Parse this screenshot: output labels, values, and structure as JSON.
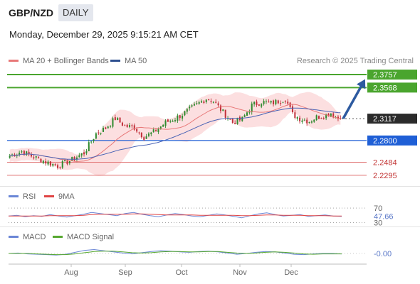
{
  "header": {
    "symbol": "GBP/NZD",
    "timeframe": "DAILY",
    "datetime": "Monday, December 29, 2025 9:15:21 AM CET",
    "credit": "Research © 2025 Trading Central"
  },
  "legend": {
    "ma20": "MA 20 + Bollinger Bands",
    "ma50": "MA 50",
    "rsi": "RSI",
    "ma9": "9MA",
    "macd": "MACD",
    "macd_signal": "MACD Signal"
  },
  "colors": {
    "bull": "#2f8a2f",
    "bear": "#c0303a",
    "ma20": "#e87878",
    "ma50": "#4a63b5",
    "band_fill": "#fbd9da",
    "resistance": "#4aa52e",
    "support": "#1f5fd6",
    "target": "#e07070",
    "arrow": "#2d5aa0",
    "current": "#2b2b2b",
    "rsi": "#6a86d6",
    "rsi_ma": "#e04444",
    "macd": "#6a86d6",
    "macd_signal": "#57a830"
  },
  "chart_data": [
    {
      "type": "candlestick",
      "title": "GBP/NZD DAILY",
      "y_range": [
        2.218,
        2.385
      ],
      "x_labels": [
        "Aug",
        "Sep",
        "Oct",
        "Nov",
        "Dec"
      ],
      "levels": [
        {
          "name": "resistance-2",
          "value": 2.3757,
          "label": "2.3757",
          "kind": "resistance"
        },
        {
          "name": "resistance-1",
          "value": 2.3568,
          "label": "2.3568",
          "kind": "resistance"
        },
        {
          "name": "current-price",
          "value": 2.3117,
          "label": "2.3117",
          "kind": "current"
        },
        {
          "name": "pivot",
          "value": 2.28,
          "label": "2.2800",
          "kind": "support"
        },
        {
          "name": "support-1",
          "value": 2.2484,
          "label": "2.2484",
          "kind": "target"
        },
        {
          "name": "support-2",
          "value": 2.2295,
          "label": "2.2295",
          "kind": "target"
        }
      ],
      "anchors": [
        {
          "i": 0,
          "c": 2.258
        },
        {
          "i": 5,
          "c": 2.264
        },
        {
          "i": 10,
          "c": 2.256
        },
        {
          "i": 15,
          "c": 2.249
        },
        {
          "i": 20,
          "c": 2.243
        },
        {
          "i": 26,
          "c": 2.252
        },
        {
          "i": 31,
          "c": 2.262
        },
        {
          "i": 36,
          "c": 2.29
        },
        {
          "i": 40,
          "c": 2.298
        },
        {
          "i": 44,
          "c": 2.312
        },
        {
          "i": 48,
          "c": 2.301
        },
        {
          "i": 52,
          "c": 2.299
        },
        {
          "i": 56,
          "c": 2.285
        },
        {
          "i": 60,
          "c": 2.292
        },
        {
          "i": 65,
          "c": 2.306
        },
        {
          "i": 69,
          "c": 2.312
        },
        {
          "i": 73,
          "c": 2.32
        },
        {
          "i": 78,
          "c": 2.332
        },
        {
          "i": 82,
          "c": 2.341
        },
        {
          "i": 85,
          "c": 2.337
        },
        {
          "i": 89,
          "c": 2.321
        },
        {
          "i": 93,
          "c": 2.306
        },
        {
          "i": 97,
          "c": 2.311
        },
        {
          "i": 101,
          "c": 2.331
        },
        {
          "i": 105,
          "c": 2.336
        },
        {
          "i": 109,
          "c": 2.334
        },
        {
          "i": 112,
          "c": 2.337
        },
        {
          "i": 115,
          "c": 2.341
        },
        {
          "i": 118,
          "c": 2.318
        },
        {
          "i": 121,
          "c": 2.312
        },
        {
          "i": 125,
          "c": 2.308
        },
        {
          "i": 128,
          "c": 2.314
        },
        {
          "i": 131,
          "c": 2.316
        },
        {
          "i": 134,
          "c": 2.32
        },
        {
          "i": 136,
          "c": 2.314
        },
        {
          "i": 138,
          "c": 2.31
        }
      ],
      "bars": 139
    },
    {
      "type": "line",
      "title": "RSI",
      "ticks": [
        {
          "value": 70,
          "label": "70"
        },
        {
          "value": 30,
          "label": "30"
        }
      ],
      "current": "47.66",
      "y_range": [
        25,
        78
      ],
      "series": [
        {
          "name": "RSI",
          "values": [
            48,
            50,
            46,
            49,
            47,
            52,
            48,
            45,
            49,
            53,
            58,
            55,
            52,
            49,
            55,
            58,
            53,
            49,
            46,
            51,
            55,
            52,
            48,
            46,
            50,
            54,
            51,
            47,
            43,
            49,
            54,
            57,
            52,
            48,
            50,
            52,
            47,
            49,
            51,
            48,
            47
          ]
        },
        {
          "name": "9MA",
          "values": [
            48,
            48,
            48,
            48,
            48,
            49,
            49,
            49,
            49,
            50,
            52,
            53,
            53,
            53,
            53,
            54,
            54,
            53,
            52,
            51,
            51,
            51,
            51,
            50,
            50,
            50,
            50,
            50,
            49,
            49,
            50,
            51,
            51,
            50,
            50,
            50,
            49,
            49,
            49,
            48,
            48
          ]
        }
      ]
    },
    {
      "type": "line",
      "title": "MACD",
      "current": "-0.00",
      "y_range": [
        -0.02,
        0.02
      ],
      "series": [
        {
          "name": "MACD",
          "values": [
            0.0,
            0.001,
            -0.001,
            -0.002,
            -0.003,
            -0.004,
            -0.002,
            0.003,
            0.008,
            0.01,
            0.007,
            0.004,
            0.001,
            -0.001,
            0.002,
            0.005,
            0.007,
            0.006,
            0.004,
            0.003,
            0.005,
            0.006,
            0.004,
            0.001,
            -0.002,
            0.0,
            0.003,
            0.005,
            0.004,
            0.001,
            -0.002,
            -0.003,
            -0.001,
            0.0,
            0.0,
            -0.001
          ]
        },
        {
          "name": "MACD Signal",
          "values": [
            0.0,
            0.0,
            0.0,
            -0.001,
            -0.002,
            -0.003,
            -0.003,
            -0.001,
            0.002,
            0.005,
            0.006,
            0.006,
            0.004,
            0.002,
            0.001,
            0.002,
            0.004,
            0.005,
            0.005,
            0.004,
            0.004,
            0.005,
            0.005,
            0.003,
            0.001,
            0.0,
            0.001,
            0.003,
            0.004,
            0.003,
            0.001,
            -0.001,
            -0.002,
            -0.001,
            -0.001,
            -0.001
          ]
        }
      ]
    }
  ]
}
